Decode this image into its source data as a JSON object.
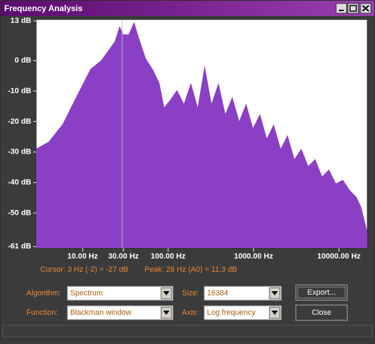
{
  "window": {
    "title": "Frequency Analysis"
  },
  "chart_data": {
    "type": "area",
    "color": "#8a3fc4",
    "log_x": true,
    "x": [
      2.85,
      4,
      5.8,
      8.4,
      12.3,
      16.3,
      19.6,
      23.7,
      27,
      30,
      34.5,
      40,
      45.5,
      55,
      66,
      79,
      90,
      105,
      127,
      153,
      185,
      222,
      268,
      322,
      389,
      468,
      564,
      680,
      819,
      986,
      1190,
      1430,
      1720,
      2080,
      2500,
      3010,
      3630,
      4370,
      5270,
      6350,
      7650,
      9220,
      11100,
      13400,
      16100,
      18300,
      21500
    ],
    "values": [
      -28.9,
      -26.6,
      -20.9,
      -11.9,
      -2.8,
      0,
      3,
      6.3,
      11.3,
      8.6,
      8.6,
      12.7,
      7.5,
      0.6,
      -2.8,
      -7.3,
      -15.3,
      -13,
      -9.6,
      -14.1,
      -7.3,
      -15.3,
      -1.6,
      -14.1,
      -7.3,
      -17.5,
      -11.9,
      -19.8,
      -14.1,
      -22.1,
      -17.5,
      -25.5,
      -20.9,
      -28.9,
      -24.4,
      -32.3,
      -28.9,
      -34.6,
      -32.3,
      -38,
      -35.7,
      -40.3,
      -39.1,
      -42.5,
      -44.8,
      -48.2,
      -56.2
    ],
    "xlim": [
      2.85,
      21500
    ],
    "ylim": [
      -61.5,
      13.5
    ],
    "yticks": [
      {
        "value": 13,
        "label": "13 dB"
      },
      {
        "value": 0,
        "label": "0 dB"
      },
      {
        "value": -10,
        "label": "-10 dB"
      },
      {
        "value": -20,
        "label": "-20 dB"
      },
      {
        "value": -30,
        "label": "-30 dB"
      },
      {
        "value": -40,
        "label": "-40 dB"
      },
      {
        "value": -50,
        "label": "-50 dB"
      },
      {
        "value": -61,
        "label": "-61 dB"
      }
    ],
    "xticks": [
      {
        "value": 10,
        "label": "10.00 Hz"
      },
      {
        "value": 30,
        "label": "30.00 Hz"
      },
      {
        "value": 100,
        "label": "100.00 Hz"
      },
      {
        "value": 1000,
        "label": "1000.00 Hz"
      },
      {
        "value": 10000,
        "label": "10000.00 Hz"
      }
    ],
    "cursor_x": 29
  },
  "status": {
    "cursor": "Cursor: 3 Hz (-2) = -27 dB",
    "peak": "Peak: 28 Hz (A0) = 11.3 dB"
  },
  "controls": {
    "algorithm_label": "Algorithm:",
    "algorithm": "Spectrum",
    "size_label": "Size:",
    "size": "16384",
    "function_label": "Function:",
    "function": "Blackman window",
    "axis_label": "Axis:",
    "axis": "Log frequency",
    "export": "Export...",
    "close": "Close"
  }
}
